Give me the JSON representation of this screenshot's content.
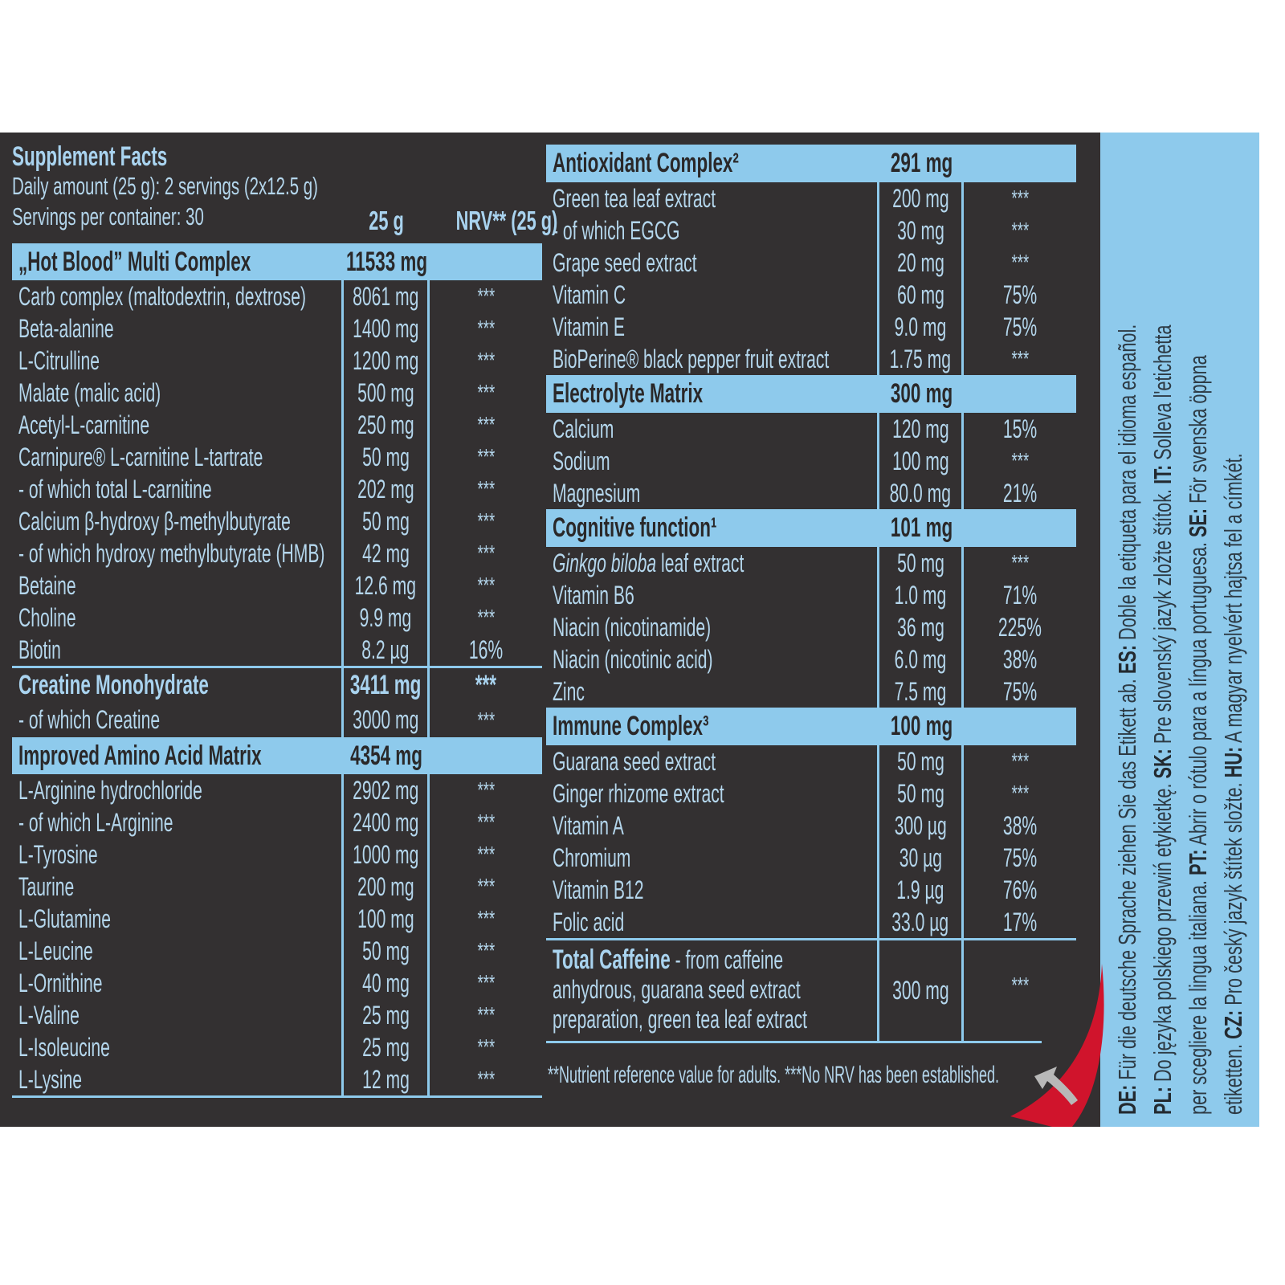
{
  "header": {
    "title": "Supplement Facts",
    "daily_amount": "Daily amount (25 g): 2 servings (2x12.5 g)",
    "servings": "Servings per container: 30",
    "col_amount": "25 g",
    "col_nrv": "NRV** (25 g)"
  },
  "left_table": [
    {
      "title": "„Hot Blood” Multi Complex",
      "amount": "11533 mg",
      "nrv": "",
      "style": "head",
      "items": [
        {
          "name": "Carb complex (maltodextrin, dextrose)",
          "amount": "8061 mg",
          "nrv": "***"
        },
        {
          "name": "Beta-alanine",
          "amount": "1400 mg",
          "nrv": "***"
        },
        {
          "name": "L-Citrulline",
          "amount": "1200 mg",
          "nrv": "***"
        },
        {
          "name": "Malate (malic acid)",
          "amount": "500 mg",
          "nrv": "***"
        },
        {
          "name": "Acetyl-L-carnitine",
          "amount": "250 mg",
          "nrv": "***"
        },
        {
          "name": "Carnipure® L-carnitine L-tartrate",
          "amount": "50 mg",
          "nrv": "***"
        },
        {
          "name": "- of which total L-carnitine",
          "amount": "202 mg",
          "nrv": "***",
          "indent": true
        },
        {
          "name": "Calcium β-hydroxy β-methylbutyrate",
          "amount": "50 mg",
          "nrv": "***"
        },
        {
          "name": "- of which hydroxy methylbutyrate (HMB)",
          "amount": "42 mg",
          "nrv": "***",
          "indent": true
        },
        {
          "name": "Betaine",
          "amount": "12.6 mg",
          "nrv": "***"
        },
        {
          "name": "Choline",
          "amount": "9.9 mg",
          "nrv": "***"
        },
        {
          "name": "Biotin",
          "amount": "8.2 µg",
          "nrv": "16%"
        }
      ]
    },
    {
      "title": "Creatine Monohydrate",
      "amount": "3411 mg",
      "nrv": "***",
      "style": "boldrow",
      "items": [
        {
          "name": "- of which Creatine",
          "amount": "3000 mg",
          "nrv": "***",
          "indent": true
        }
      ]
    },
    {
      "title": "Improved Amino Acid Matrix",
      "amount": "4354 mg",
      "nrv": "",
      "style": "head",
      "items": [
        {
          "name": "L-Arginine hydrochloride",
          "amount": "2902 mg",
          "nrv": "***"
        },
        {
          "name": "- of which L-Arginine",
          "amount": "2400 mg",
          "nrv": "***",
          "indent": true
        },
        {
          "name": "L-Tyrosine",
          "amount": "1000 mg",
          "nrv": "***"
        },
        {
          "name": "Taurine",
          "amount": "200 mg",
          "nrv": "***"
        },
        {
          "name": "L-Glutamine",
          "amount": "100 mg",
          "nrv": "***"
        },
        {
          "name": "L-Leucine",
          "amount": "50 mg",
          "nrv": "***"
        },
        {
          "name": "L-Ornithine",
          "amount": "40 mg",
          "nrv": "***"
        },
        {
          "name": "L-Valine",
          "amount": "25 mg",
          "nrv": "***"
        },
        {
          "name": "L-Isoleucine",
          "amount": "25 mg",
          "nrv": "***"
        },
        {
          "name": "L-Lysine",
          "amount": "12 mg",
          "nrv": "***"
        }
      ]
    }
  ],
  "right_table": [
    {
      "title": "Antioxidant Complex²",
      "amount": "291 mg",
      "nrv": "",
      "style": "head",
      "items": [
        {
          "name": "Green tea leaf extract",
          "amount": "200 mg",
          "nrv": "***"
        },
        {
          "name": "- of which EGCG",
          "amount": "30 mg",
          "nrv": "***",
          "indent": true
        },
        {
          "name": "Grape seed extract",
          "amount": "20 mg",
          "nrv": "***"
        },
        {
          "name": "Vitamin C",
          "amount": "60 mg",
          "nrv": "75%"
        },
        {
          "name": "Vitamin E",
          "amount": "9.0 mg",
          "nrv": "75%"
        },
        {
          "name": "BioPerine® black pepper fruit extract",
          "amount": "1.75 mg",
          "nrv": "***"
        }
      ]
    },
    {
      "title": "Electrolyte Matrix",
      "amount": "300 mg",
      "nrv": "",
      "style": "head",
      "items": [
        {
          "name": "Calcium",
          "amount": "120 mg",
          "nrv": "15%"
        },
        {
          "name": "Sodium",
          "amount": "100 mg",
          "nrv": "***"
        },
        {
          "name": "Magnesium",
          "amount": "80.0 mg",
          "nrv": "21%"
        }
      ]
    },
    {
      "title": "Cognitive function¹",
      "amount": "101 mg",
      "nrv": "",
      "style": "head",
      "items": [
        {
          "name_italic": "Ginkgo biloba",
          "name": " leaf extract",
          "amount": "50 mg",
          "nrv": "***"
        },
        {
          "name": "Vitamin B6",
          "amount": "1.0 mg",
          "nrv": "71%"
        },
        {
          "name": "Niacin (nicotinamide)",
          "amount": "36 mg",
          "nrv": "225%"
        },
        {
          "name": "Niacin (nicotinic acid)",
          "amount": "6.0 mg",
          "nrv": "38%"
        },
        {
          "name": "Zinc",
          "amount": "7.5 mg",
          "nrv": "75%"
        }
      ]
    },
    {
      "title": "Immune Complex³",
      "amount": "100 mg",
      "nrv": "",
      "style": "head",
      "items": [
        {
          "name": "Guarana seed extract",
          "amount": "50 mg",
          "nrv": "***"
        },
        {
          "name": "Ginger rhizome extract",
          "amount": "50 mg",
          "nrv": "***"
        },
        {
          "name": "Vitamin A",
          "amount": "300 µg",
          "nrv": "38%"
        },
        {
          "name": "Chromium",
          "amount": "30 µg",
          "nrv": "75%"
        },
        {
          "name": "Vitamin B12",
          "amount": "1.9 µg",
          "nrv": "76%"
        },
        {
          "name": "Folic acid",
          "amount": "33.0 µg",
          "nrv": "17%"
        }
      ]
    }
  ],
  "caffeine": {
    "name_bold": "Total Caffeine",
    "name_lines": [
      " - from caffeine",
      "anhydrous, guarana seed extract",
      "preparation, green tea leaf extract"
    ],
    "amount": "300 mg",
    "nrv": "***"
  },
  "footnote": "**Nutrient reference value for adults. ***No NRV has been established.",
  "language_note": [
    [
      {
        "b": "DE:",
        "t": " Für die deutsche Sprache ziehen Sie das Etikett ab. "
      },
      {
        "b": "ES:",
        "t": " Doble la etiqueta para el idioma español."
      }
    ],
    [
      {
        "b": "PL:",
        "t": " Do języka polskiego przewiń etykietkę. "
      },
      {
        "b": "SK:",
        "t": " Pre slovenský jazyk zložte štítok. "
      },
      {
        "b": "IT:",
        "t": " Solleva l'etichetta"
      }
    ],
    [
      {
        "b": "",
        "t": "per scegliere la lingua italiana. "
      },
      {
        "b": "PT:",
        "t": " Abrir o rótulo para a língua portuguesa. "
      },
      {
        "b": "SE:",
        "t": " För svenska öppna"
      }
    ],
    [
      {
        "b": "",
        "t": "etiketten. "
      },
      {
        "b": "CZ:",
        "t": " Pro český jazyk štítek složte. "
      },
      {
        "b": "HU:",
        "t": " A magyar nyelvért hajtsa fel a címkét."
      }
    ]
  ],
  "colors": {
    "background": "#333031",
    "accent": "#8ecaec",
    "text": "#b4d6ec",
    "arrow": "#d0142c"
  },
  "icons": {
    "peel_arrow": "curved-peel-arrow-icon"
  }
}
